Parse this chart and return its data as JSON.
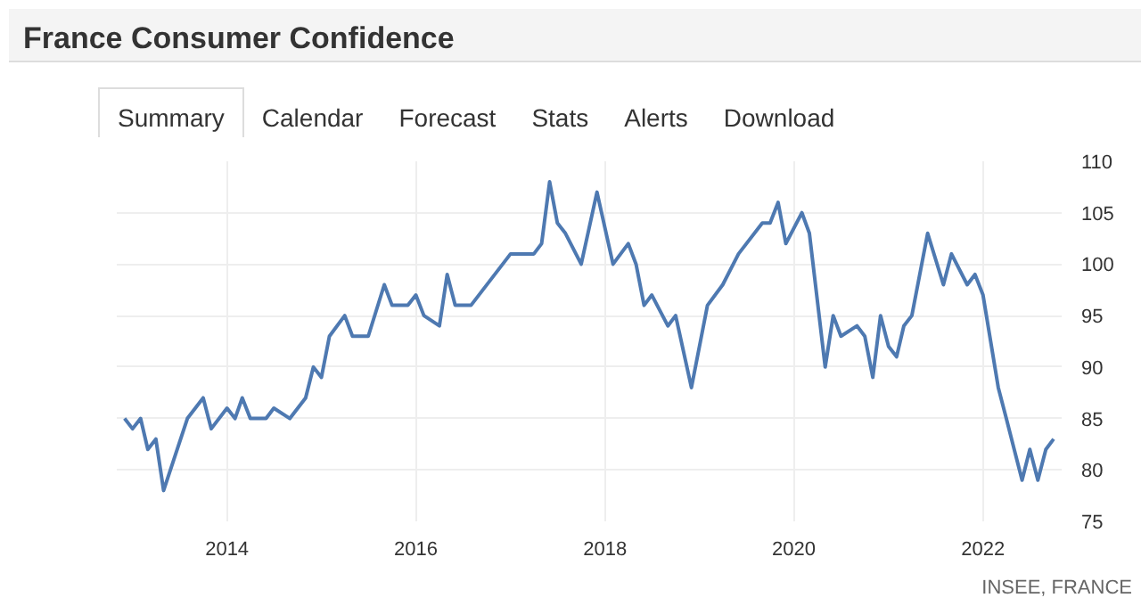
{
  "chart_data": {
    "type": "line",
    "title": "France Consumer Confidence",
    "annotations": [
      "Summary",
      "Calendar",
      "Forecast",
      "Stats",
      "Alerts",
      "Download",
      "INSEE, FRANCE"
    ],
    "x": [
      "2012-12",
      "2013-01",
      "2013-02",
      "2013-03",
      "2013-04",
      "2013-05",
      "2013-08",
      "2013-10",
      "2013-11",
      "2014-01",
      "2014-02",
      "2014-03",
      "2014-04",
      "2014-06",
      "2014-07",
      "2014-09",
      "2014-11",
      "2014-12",
      "2015-01",
      "2015-02",
      "2015-04",
      "2015-05",
      "2015-07",
      "2015-09",
      "2015-10",
      "2015-12",
      "2016-01",
      "2016-02",
      "2016-04",
      "2016-05",
      "2016-06",
      "2016-08",
      "2017-01",
      "2017-04",
      "2017-05",
      "2017-06",
      "2017-07",
      "2017-08",
      "2017-10",
      "2017-12",
      "2018-02",
      "2018-04",
      "2018-05",
      "2018-06",
      "2018-07",
      "2018-09",
      "2018-10",
      "2018-12",
      "2019-02",
      "2019-04",
      "2019-06",
      "2019-09",
      "2019-10",
      "2019-11",
      "2019-12",
      "2020-02",
      "2020-03",
      "2020-05",
      "2020-06",
      "2020-07",
      "2020-09",
      "2020-10",
      "2020-11",
      "2020-12",
      "2021-01",
      "2021-02",
      "2021-03",
      "2021-04",
      "2021-06",
      "2021-08",
      "2021-09",
      "2021-11",
      "2021-12",
      "2022-01",
      "2022-03",
      "2022-04",
      "2022-06",
      "2022-07",
      "2022-08",
      "2022-09",
      "2022-10"
    ],
    "series": [
      {
        "color": "#4e79b1",
        "values": [
          85,
          84,
          85,
          82,
          83,
          78,
          85,
          87,
          84,
          86,
          85,
          87,
          85,
          85,
          86,
          85,
          87,
          90,
          89,
          93,
          95,
          93,
          93,
          98,
          96,
          96,
          97,
          95,
          94,
          99,
          96,
          96,
          101,
          101,
          102,
          108,
          104,
          103,
          100,
          107,
          100,
          102,
          100,
          96,
          97,
          94,
          95,
          88,
          96,
          98,
          101,
          104,
          104,
          106,
          102,
          105,
          103,
          90,
          95,
          93,
          94,
          93,
          89,
          95,
          92,
          91,
          94,
          95,
          103,
          98,
          101,
          98,
          99,
          97,
          88,
          85,
          79,
          82,
          79,
          82,
          83
        ]
      }
    ],
    "xlim": [
      "2012-11",
      "2022-11"
    ],
    "xticks": [
      "2014",
      "2016",
      "2018",
      "2020",
      "2022"
    ],
    "ylim": [
      75,
      110
    ],
    "yticks": [
      75,
      80,
      85,
      90,
      95,
      100,
      105,
      110
    ],
    "grid": true,
    "marker": "none",
    "line_style": "solid"
  }
}
